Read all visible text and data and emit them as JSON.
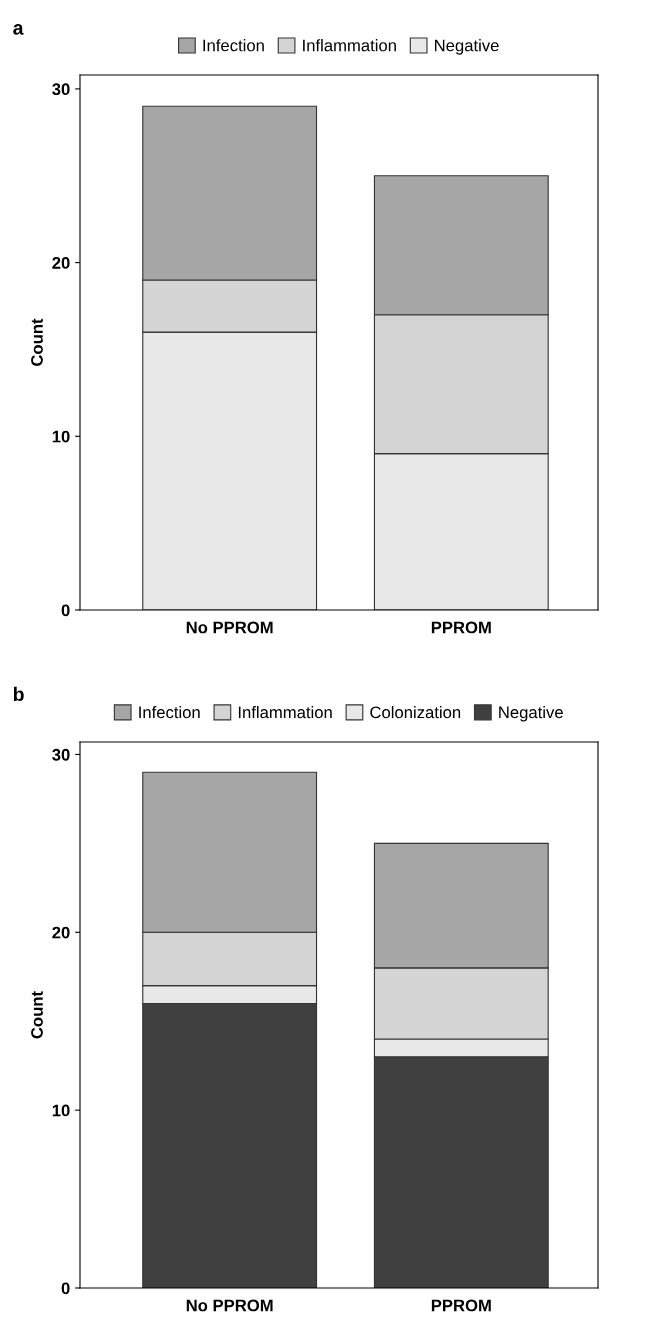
{
  "chart_data": [
    {
      "type": "bar",
      "title": "a",
      "ylabel": "Count",
      "categories": [
        "No PPROM",
        "PPROM"
      ],
      "stacked": true,
      "legend": "top",
      "grid": false,
      "ylim": [
        0,
        30.8
      ],
      "yticks": [
        0,
        10,
        20,
        30
      ],
      "series": [
        {
          "name": "Negative",
          "color": "#e8e8e8",
          "values": [
            16,
            9
          ]
        },
        {
          "name": "Inflammation",
          "color": "#d4d4d4",
          "values": [
            3,
            8
          ]
        },
        {
          "name": "Infection",
          "color": "#a6a6a6",
          "values": [
            10,
            8
          ]
        }
      ]
    },
    {
      "type": "bar",
      "title": "b",
      "ylabel": "Count",
      "categories": [
        "No PPROM",
        "PPROM"
      ],
      "stacked": true,
      "legend": "top",
      "grid": false,
      "ylim": [
        0,
        30.7
      ],
      "yticks": [
        0,
        10,
        20,
        30
      ],
      "series": [
        {
          "name": "Negative",
          "color": "#404040",
          "values": [
            16,
            13
          ]
        },
        {
          "name": "Colonization",
          "color": "#e8e8e8",
          "values": [
            1,
            1
          ]
        },
        {
          "name": "Inflammation",
          "color": "#d4d4d4",
          "values": [
            3,
            4
          ]
        },
        {
          "name": "Infection",
          "color": "#a6a6a6",
          "values": [
            9,
            7
          ]
        }
      ]
    }
  ]
}
